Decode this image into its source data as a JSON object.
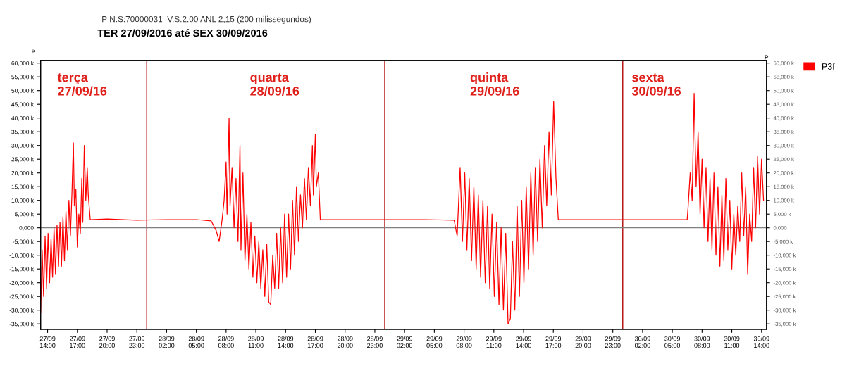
{
  "chart_data": {
    "type": "line",
    "title": "P N.S:70000031  V.S.2.00 ANL 2,15 (200 milissegundos)",
    "subtitle": "TER 27/09/2016 até SEX 30/09/2016",
    "ylabel": "P",
    "y2label": "P",
    "annotations": [
      "terça\n27/09/16",
      "quarta\n28/09/16",
      "quinta\n29/09/16",
      "sexta\n30/09/16"
    ],
    "series": [
      {
        "name": "P3f",
        "color": "#ff0000",
        "x": [
          "2016-09-27T13:18",
          "2016-09-27T13:27",
          "2016-09-27T13:36",
          "2016-09-27T13:45",
          "2016-09-27T13:54",
          "2016-09-27T14:03",
          "2016-09-27T14:12",
          "2016-09-27T14:21",
          "2016-09-27T14:30",
          "2016-09-27T14:39",
          "2016-09-27T14:48",
          "2016-09-27T14:57",
          "2016-09-27T15:06",
          "2016-09-27T15:15",
          "2016-09-27T15:24",
          "2016-09-27T15:33",
          "2016-09-27T15:42",
          "2016-09-27T15:51",
          "2016-09-27T16:00",
          "2016-09-27T16:09",
          "2016-09-27T16:18",
          "2016-09-27T16:27",
          "2016-09-27T16:36",
          "2016-09-27T16:42",
          "2016-09-27T16:51",
          "2016-09-27T17:00",
          "2016-09-27T17:09",
          "2016-09-27T17:18",
          "2016-09-27T17:27",
          "2016-09-27T17:33",
          "2016-09-27T17:42",
          "2016-09-27T17:51",
          "2016-09-27T18:00",
          "2016-09-27T18:06",
          "2016-09-27T18:18",
          "2016-09-27T20:00",
          "2016-09-27T23:00",
          "2016-09-28T02:00",
          "2016-09-28T05:00",
          "2016-09-28T06:30",
          "2016-09-28T07:00",
          "2016-09-28T07:18",
          "2016-09-28T07:36",
          "2016-09-28T07:48",
          "2016-09-28T08:00",
          "2016-09-28T08:06",
          "2016-09-28T08:18",
          "2016-09-28T08:24",
          "2016-09-28T08:36",
          "2016-09-28T08:48",
          "2016-09-28T09:00",
          "2016-09-28T09:12",
          "2016-09-28T09:24",
          "2016-09-28T09:30",
          "2016-09-28T09:42",
          "2016-09-28T09:54",
          "2016-09-28T10:06",
          "2016-09-28T10:18",
          "2016-09-28T10:30",
          "2016-09-28T10:42",
          "2016-09-28T10:54",
          "2016-09-28T11:06",
          "2016-09-28T11:18",
          "2016-09-28T11:30",
          "2016-09-28T11:42",
          "2016-09-28T11:54",
          "2016-09-28T12:06",
          "2016-09-28T12:18",
          "2016-09-28T12:30",
          "2016-09-28T12:42",
          "2016-09-28T12:54",
          "2016-09-28T13:06",
          "2016-09-28T13:18",
          "2016-09-28T13:30",
          "2016-09-28T13:42",
          "2016-09-28T13:54",
          "2016-09-28T14:06",
          "2016-09-28T14:18",
          "2016-09-28T14:30",
          "2016-09-28T14:42",
          "2016-09-28T14:54",
          "2016-09-28T15:06",
          "2016-09-28T15:18",
          "2016-09-28T15:30",
          "2016-09-28T15:42",
          "2016-09-28T15:54",
          "2016-09-28T16:06",
          "2016-09-28T16:18",
          "2016-09-28T16:30",
          "2016-09-28T16:42",
          "2016-09-28T16:48",
          "2016-09-28T17:00",
          "2016-09-28T17:06",
          "2016-09-28T17:18",
          "2016-09-28T17:30",
          "2016-09-28T20:00",
          "2016-09-29T00:00",
          "2016-09-29T04:00",
          "2016-09-29T07:00",
          "2016-09-29T07:18",
          "2016-09-29T07:36",
          "2016-09-29T07:50",
          "2016-09-29T08:04",
          "2016-09-29T08:17",
          "2016-09-29T08:31",
          "2016-09-29T08:45",
          "2016-09-29T08:59",
          "2016-09-29T09:13",
          "2016-09-29T09:26",
          "2016-09-29T09:40",
          "2016-09-29T09:54",
          "2016-09-29T10:08",
          "2016-09-29T10:22",
          "2016-09-29T10:35",
          "2016-09-29T10:49",
          "2016-09-29T11:03",
          "2016-09-29T11:17",
          "2016-09-29T11:31",
          "2016-09-29T11:44",
          "2016-09-29T11:58",
          "2016-09-29T12:12",
          "2016-09-29T12:26",
          "2016-09-29T12:40",
          "2016-09-29T12:53",
          "2016-09-29T13:07",
          "2016-09-29T13:21",
          "2016-09-29T13:35",
          "2016-09-29T13:49",
          "2016-09-29T14:02",
          "2016-09-29T14:16",
          "2016-09-29T14:30",
          "2016-09-29T14:44",
          "2016-09-29T14:58",
          "2016-09-29T15:11",
          "2016-09-29T15:25",
          "2016-09-29T15:39",
          "2016-09-29T15:53",
          "2016-09-29T16:07",
          "2016-09-29T16:20",
          "2016-09-29T16:34",
          "2016-09-29T16:48",
          "2016-09-29T17:02",
          "2016-09-29T17:16",
          "2016-09-29T17:30",
          "2016-09-29T20:00",
          "2016-09-30T00:00",
          "2016-09-30T04:00",
          "2016-09-30T06:30",
          "2016-09-30T06:36",
          "2016-09-30T06:48",
          "2016-09-30T07:00",
          "2016-09-30T07:12",
          "2016-09-30T07:24",
          "2016-09-30T07:36",
          "2016-09-30T07:48",
          "2016-09-30T08:00",
          "2016-09-30T08:12",
          "2016-09-30T08:24",
          "2016-09-30T08:36",
          "2016-09-30T08:48",
          "2016-09-30T09:00",
          "2016-09-30T09:12",
          "2016-09-30T09:24",
          "2016-09-30T09:36",
          "2016-09-30T09:48",
          "2016-09-30T10:00",
          "2016-09-30T10:12",
          "2016-09-30T10:24",
          "2016-09-30T10:36",
          "2016-09-30T10:48",
          "2016-09-30T11:00",
          "2016-09-30T11:12",
          "2016-09-30T11:24",
          "2016-09-30T11:36",
          "2016-09-30T11:48",
          "2016-09-30T12:00",
          "2016-09-30T12:12",
          "2016-09-30T12:24",
          "2016-09-30T12:36",
          "2016-09-30T12:48",
          "2016-09-30T13:00",
          "2016-09-30T13:12",
          "2016-09-30T13:24",
          "2016-09-30T13:36",
          "2016-09-30T13:48",
          "2016-09-30T14:00",
          "2016-09-30T14:12"
        ],
        "values": [
          -31,
          -8,
          -25,
          -3,
          -22,
          -2,
          -20,
          -4,
          -18,
          0,
          -17,
          1,
          -14,
          2,
          -14,
          4,
          -12,
          6,
          -8,
          10,
          -3,
          12,
          31,
          8,
          14,
          -7,
          5,
          -2,
          18,
          2,
          30,
          10,
          22,
          12,
          3,
          3.2,
          2.8,
          3,
          3,
          2.5,
          -1,
          -5,
          3,
          10,
          24,
          5,
          40,
          8,
          22,
          0,
          18,
          -5,
          30,
          -8,
          20,
          -12,
          5,
          -15,
          2,
          -18,
          -3,
          -20,
          -5,
          -22,
          -8,
          -25,
          -6,
          -27,
          -28,
          -10,
          -22,
          -2,
          -22,
          0,
          -20,
          5,
          -18,
          5,
          -15,
          10,
          -10,
          15,
          -5,
          12,
          0,
          18,
          3,
          22,
          8,
          30,
          12,
          34,
          15,
          20,
          3,
          3,
          3,
          3,
          2.8,
          -3,
          22,
          -5,
          20,
          -8,
          18,
          -12,
          15,
          -15,
          12,
          -18,
          10,
          -20,
          8,
          -22,
          5,
          -25,
          2,
          -28,
          0,
          -30,
          -2,
          -35,
          -33,
          -5,
          -30,
          8,
          -25,
          10,
          -20,
          15,
          -15,
          20,
          -10,
          22,
          -5,
          25,
          0,
          30,
          8,
          35,
          12,
          46,
          18,
          3,
          3,
          3,
          3,
          3,
          8,
          20,
          10,
          49,
          15,
          35,
          5,
          25,
          0,
          22,
          -5,
          18,
          -8,
          20,
          -10,
          15,
          -14,
          12,
          -12,
          18,
          -8,
          10,
          -15,
          5,
          -10,
          8,
          -5,
          20,
          -3,
          15,
          -17,
          5,
          -5,
          22,
          0,
          26,
          5,
          25,
          10
        ]
      }
    ],
    "xlim": [
      "2016-09-27T13:18",
      "2016-09-30T14:30"
    ],
    "xticks": [
      {
        "value": "2016-09-27T14:00",
        "label": "27/09\n14:00"
      },
      {
        "value": "2016-09-27T17:00",
        "label": "27/09\n17:00"
      },
      {
        "value": "2016-09-27T20:00",
        "label": "27/09\n20:00"
      },
      {
        "value": "2016-09-27T23:00",
        "label": "27/09\n23:00"
      },
      {
        "value": "2016-09-28T02:00",
        "label": "28/09\n02:00"
      },
      {
        "value": "2016-09-28T05:00",
        "label": "28/09\n05:00"
      },
      {
        "value": "2016-09-28T08:00",
        "label": "28/09\n08:00"
      },
      {
        "value": "2016-09-28T11:00",
        "label": "28/09\n11:00"
      },
      {
        "value": "2016-09-28T14:00",
        "label": "28/09\n14:00"
      },
      {
        "value": "2016-09-28T17:00",
        "label": "28/09\n17:00"
      },
      {
        "value": "2016-09-28T20:00",
        "label": "28/09\n20:00"
      },
      {
        "value": "2016-09-28T23:00",
        "label": "28/09\n23:00"
      },
      {
        "value": "2016-09-29T02:00",
        "label": "29/09\n02:00"
      },
      {
        "value": "2016-09-29T05:00",
        "label": "29/09\n05:00"
      },
      {
        "value": "2016-09-29T08:00",
        "label": "29/09\n08:00"
      },
      {
        "value": "2016-09-29T11:00",
        "label": "29/09\n11:00"
      },
      {
        "value": "2016-09-29T14:00",
        "label": "29/09\n14:00"
      },
      {
        "value": "2016-09-29T17:00",
        "label": "29/09\n17:00"
      },
      {
        "value": "2016-09-29T20:00",
        "label": "29/09\n20:00"
      },
      {
        "value": "2016-09-29T23:00",
        "label": "29/09\n23:00"
      },
      {
        "value": "2016-09-30T02:00",
        "label": "30/09\n02:00"
      },
      {
        "value": "2016-09-30T05:00",
        "label": "30/09\n05:00"
      },
      {
        "value": "2016-09-30T08:00",
        "label": "30/09\n08:00"
      },
      {
        "value": "2016-09-30T11:00",
        "label": "30/09\n11:00"
      },
      {
        "value": "2016-09-30T14:00",
        "label": "30/09\n14:00"
      }
    ],
    "ylim": [
      -37,
      61
    ],
    "yticks": [
      {
        "value": 60,
        "label": "60,000 k"
      },
      {
        "value": 55,
        "label": "55,000 k"
      },
      {
        "value": 50,
        "label": "50,000 k"
      },
      {
        "value": 45,
        "label": "45,000 k"
      },
      {
        "value": 40,
        "label": "40,000 k"
      },
      {
        "value": 35,
        "label": "35,000 k"
      },
      {
        "value": 30,
        "label": "30,000 k"
      },
      {
        "value": 25,
        "label": "25,000 k"
      },
      {
        "value": 20,
        "label": "20,000 k"
      },
      {
        "value": 15,
        "label": "15,000 k"
      },
      {
        "value": 10,
        "label": "10,000 k"
      },
      {
        "value": 5,
        "label": "5,000 k"
      },
      {
        "value": 0,
        "label": "0,000"
      },
      {
        "value": -5,
        "label": "-5,000 k"
      },
      {
        "value": -10,
        "label": "-10,000 k"
      },
      {
        "value": -15,
        "label": "-15,000 k"
      },
      {
        "value": -20,
        "label": "-20,000 k"
      },
      {
        "value": -25,
        "label": "-25,000 k"
      },
      {
        "value": -30,
        "label": "-30,000 k"
      },
      {
        "value": -35,
        "label": "-35,000 k"
      }
    ],
    "y2lim": [
      -37,
      61
    ],
    "y2ticks": [
      {
        "value": 60,
        "label": "60,000 k"
      },
      {
        "value": 55,
        "label": "55,000 k"
      },
      {
        "value": 50,
        "label": "50,000 k"
      },
      {
        "value": 45,
        "label": "45,000 k"
      },
      {
        "value": 40,
        "label": "40,000 k"
      },
      {
        "value": 35,
        "label": "35,000 k"
      },
      {
        "value": 30,
        "label": "30,000 k"
      },
      {
        "value": 25,
        "label": "25,000 k"
      },
      {
        "value": 20,
        "label": "20,000 k"
      },
      {
        "value": 15,
        "label": "15,000 k"
      },
      {
        "value": 10,
        "label": "10,000 k"
      },
      {
        "value": 5,
        "label": "5,000 k"
      },
      {
        "value": 0,
        "label": "0,000"
      },
      {
        "value": -5,
        "label": "-5,000 k"
      },
      {
        "value": -10,
        "label": "-10,000 k"
      },
      {
        "value": -15,
        "label": "-15,000 k"
      },
      {
        "value": -20,
        "label": "-20,000 k"
      },
      {
        "value": -25,
        "label": "-25,000 k"
      },
      {
        "value": -30,
        "label": "-30,000 k"
      },
      {
        "value": -35,
        "label": "-35,000 k"
      }
    ],
    "ref_lines": [
      {
        "axis": "x",
        "value": "2016-09-28T00:00",
        "color": "#b81c1c"
      },
      {
        "axis": "x",
        "value": "2016-09-29T00:00",
        "color": "#b81c1c"
      },
      {
        "axis": "x",
        "value": "2016-09-30T00:00",
        "color": "#b81c1c"
      },
      {
        "axis": "y",
        "value": 0,
        "color": "#808080"
      }
    ],
    "grid": false,
    "legend": "top right",
    "line_style": "solid"
  }
}
